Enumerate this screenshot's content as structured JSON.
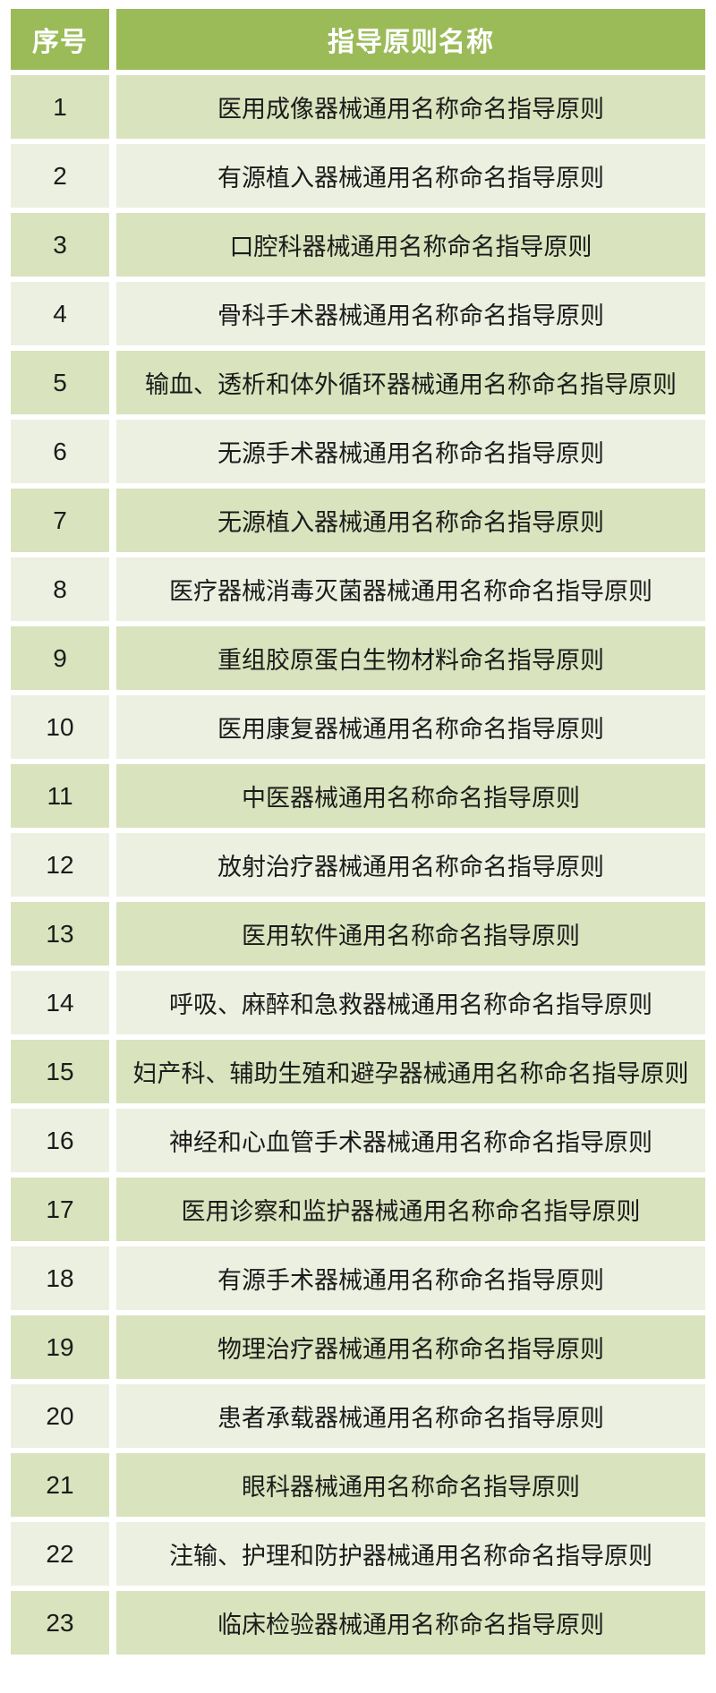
{
  "colors": {
    "header_bg": "#9BBB59",
    "header_text": "#FFFFFF",
    "row_odd_bg": "#D9E3BD",
    "row_even_bg": "#ECF0E1",
    "body_text": "#1B1B1B",
    "page_bg": "#FFFFFF"
  },
  "table": {
    "headers": {
      "no": "序号",
      "name": "指导原则名称"
    },
    "rows": [
      {
        "no": "1",
        "name": "医用成像器械通用名称命名指导原则"
      },
      {
        "no": "2",
        "name": "有源植入器械通用名称命名指导原则"
      },
      {
        "no": "3",
        "name": "口腔科器械通用名称命名指导原则"
      },
      {
        "no": "4",
        "name": "骨科手术器械通用名称命名指导原则"
      },
      {
        "no": "5",
        "name": "输血、透析和体外循环器械通用名称命名指导原则"
      },
      {
        "no": "6",
        "name": "无源手术器械通用名称命名指导原则"
      },
      {
        "no": "7",
        "name": "无源植入器械通用名称命名指导原则"
      },
      {
        "no": "8",
        "name": "医疗器械消毒灭菌器械通用名称命名指导原则"
      },
      {
        "no": "9",
        "name": "重组胶原蛋白生物材料命名指导原则"
      },
      {
        "no": "10",
        "name": "医用康复器械通用名称命名指导原则"
      },
      {
        "no": "11",
        "name": "中医器械通用名称命名指导原则"
      },
      {
        "no": "12",
        "name": "放射治疗器械通用名称命名指导原则"
      },
      {
        "no": "13",
        "name": "医用软件通用名称命名指导原则"
      },
      {
        "no": "14",
        "name": "呼吸、麻醉和急救器械通用名称命名指导原则"
      },
      {
        "no": "15",
        "name": "妇产科、辅助生殖和避孕器械通用名称命名指导原则"
      },
      {
        "no": "16",
        "name": "神经和心血管手术器械通用名称命名指导原则"
      },
      {
        "no": "17",
        "name": "医用诊察和监护器械通用名称命名指导原则"
      },
      {
        "no": "18",
        "name": "有源手术器械通用名称命名指导原则"
      },
      {
        "no": "19",
        "name": "物理治疗器械通用名称命名指导原则"
      },
      {
        "no": "20",
        "name": "患者承载器械通用名称命名指导原则"
      },
      {
        "no": "21",
        "name": "眼科器械通用名称命名指导原则"
      },
      {
        "no": "22",
        "name": "注输、护理和防护器械通用名称命名指导原则"
      },
      {
        "no": "23",
        "name": "临床检验器械通用名称命名指导原则"
      }
    ]
  }
}
